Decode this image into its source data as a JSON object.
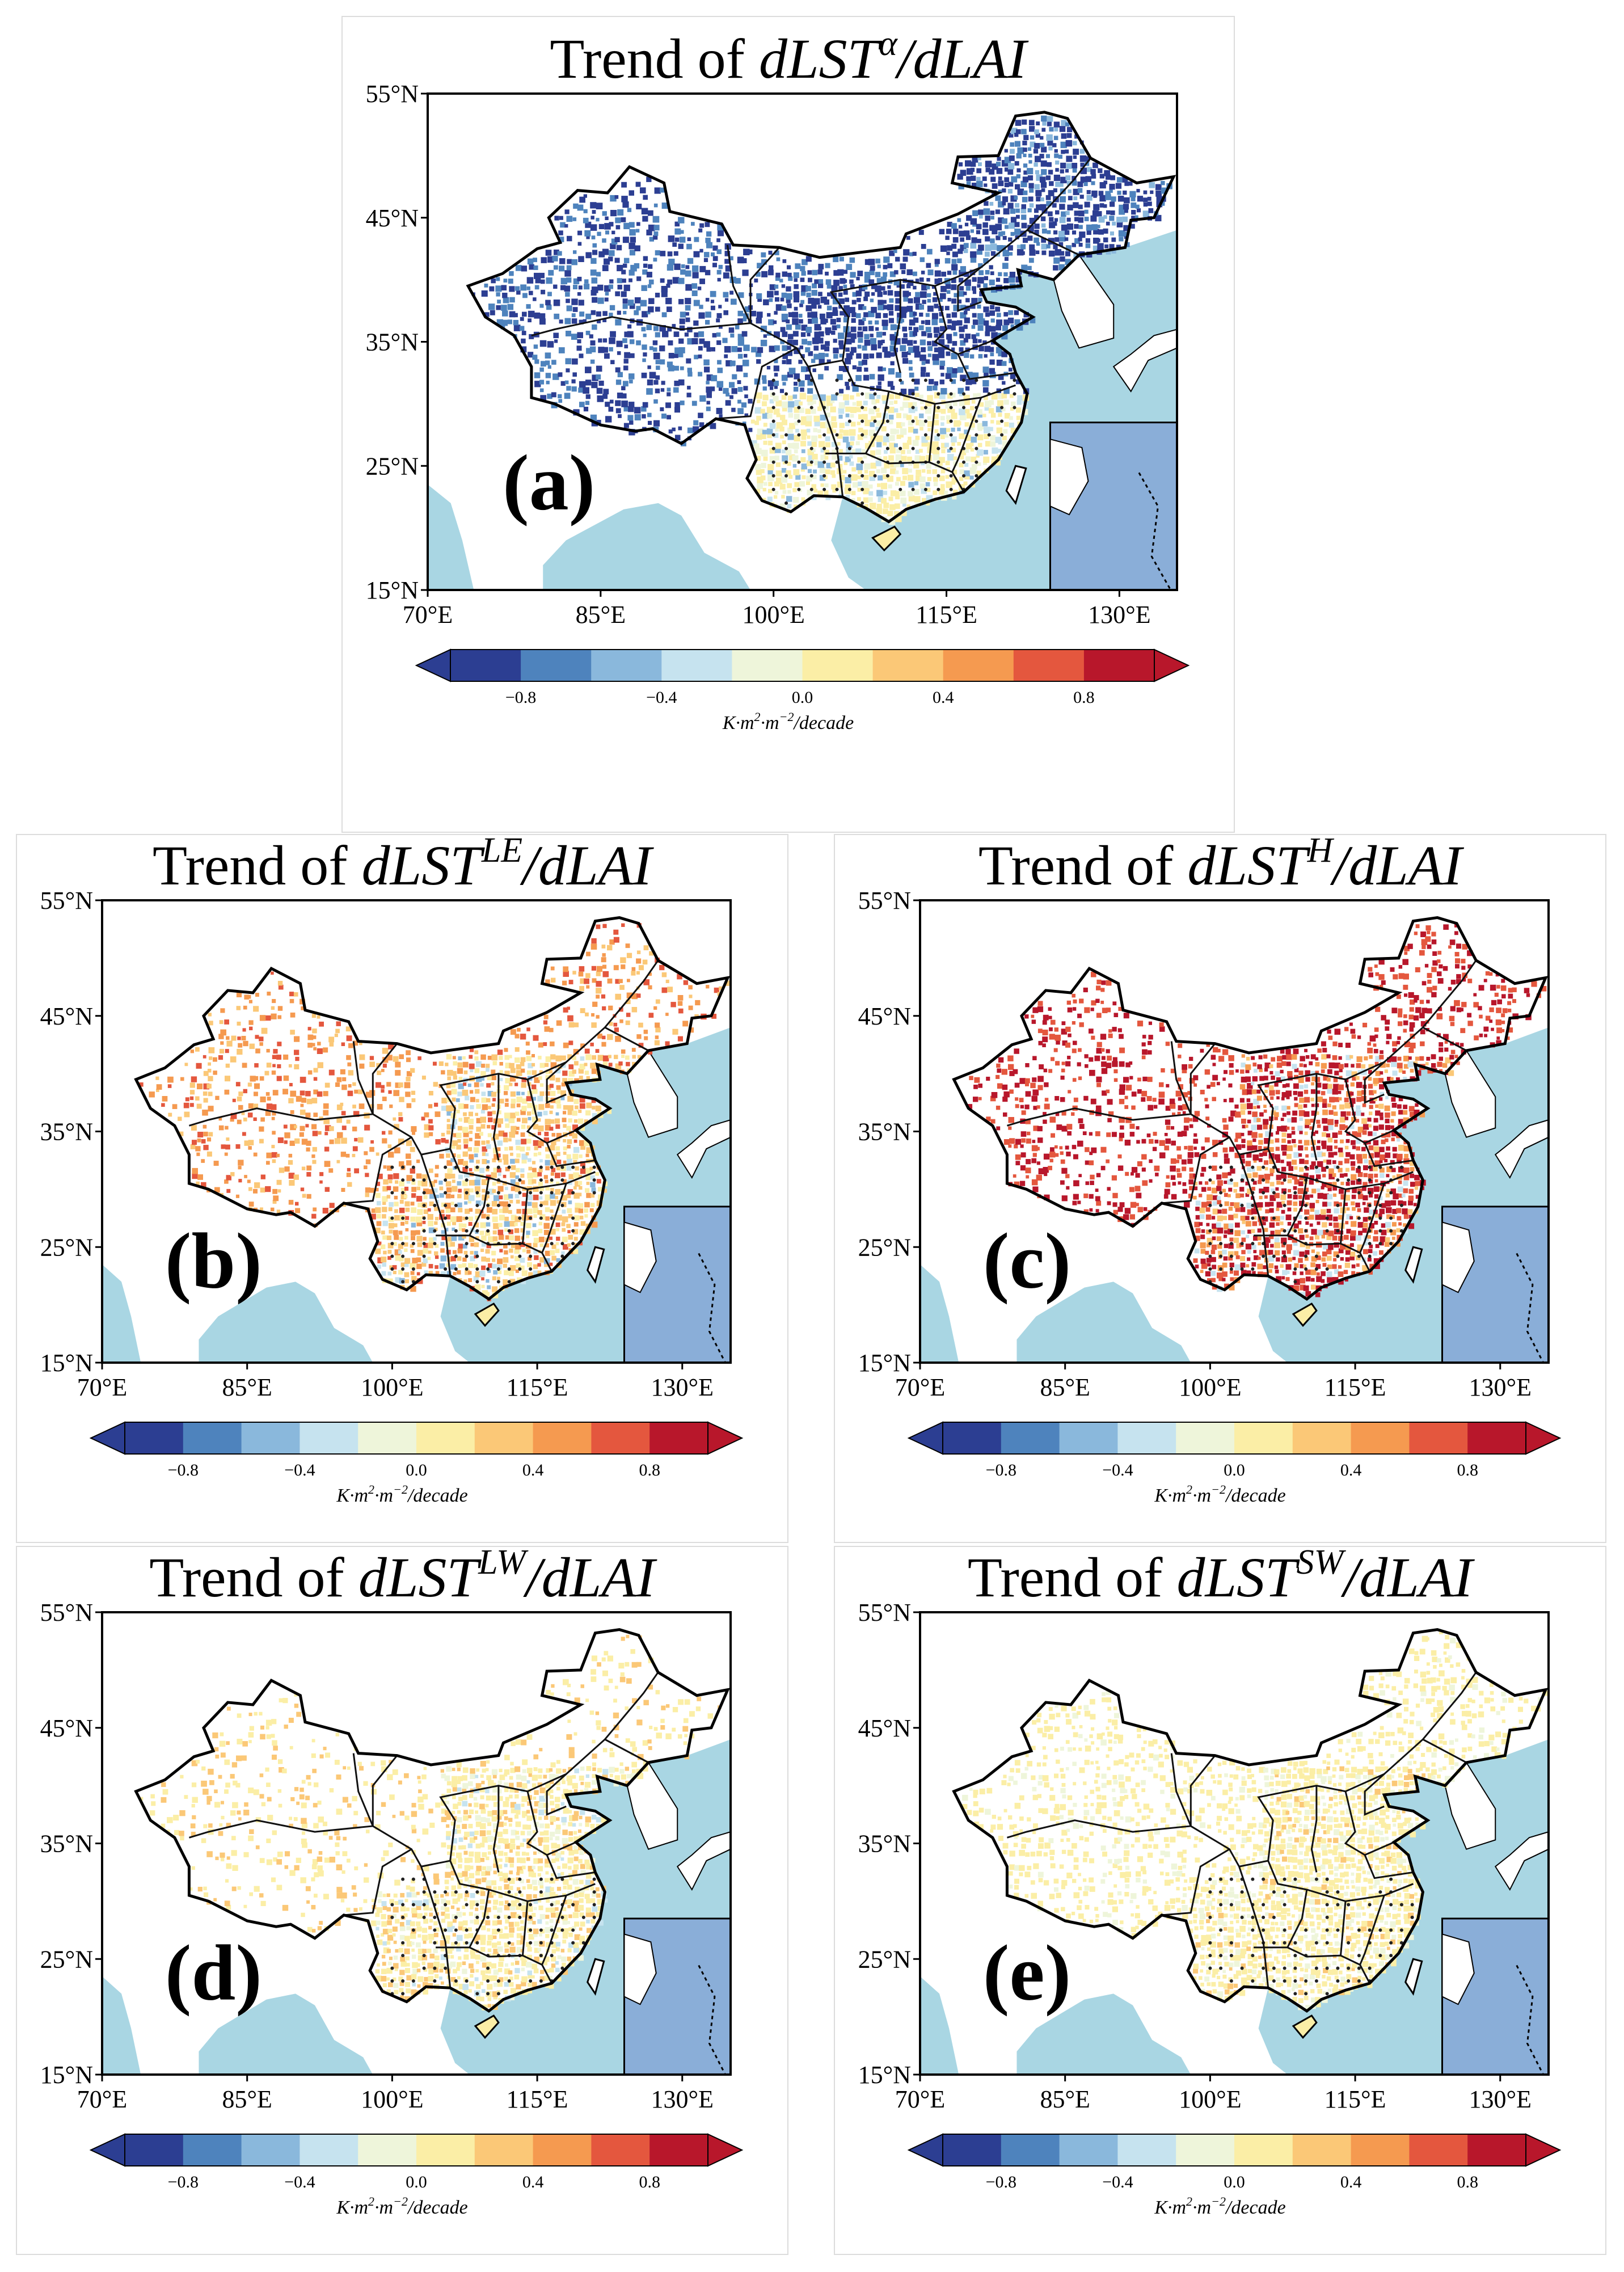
{
  "figure": {
    "title_prefix": "Trend of ",
    "panels": [
      {
        "id": "a",
        "label": "(a)",
        "sup": "α",
        "tone": "neg"
      },
      {
        "id": "b",
        "label": "(b)",
        "sup": "LE",
        "tone": "mixpos"
      },
      {
        "id": "c",
        "label": "(c)",
        "sup": "H",
        "tone": "strongpos"
      },
      {
        "id": "d",
        "label": "(d)",
        "sup": "LW",
        "tone": "weakpos"
      },
      {
        "id": "e",
        "label": "(e)",
        "sup": "SW",
        "tone": "faintpos"
      }
    ],
    "title_var": "dLST",
    "title_denom": "/dLAI",
    "lat_ticks": [
      "55°N",
      "45°N",
      "35°N",
      "25°N",
      "15°N"
    ],
    "lon_ticks": [
      "70°E",
      "85°E",
      "100°E",
      "115°E",
      "130°E"
    ],
    "colorbar": {
      "colors": [
        "#2c3e92",
        "#4e83bd",
        "#8ab8dc",
        "#c6e3ef",
        "#eef5da",
        "#fbeea6",
        "#fbc877",
        "#f59a50",
        "#e4573e",
        "#b8172b"
      ],
      "tick_labels": [
        "−0.8",
        "−0.4",
        "0.0",
        "0.4",
        "0.8"
      ],
      "tick_values": [
        -0.8,
        -0.4,
        0.0,
        0.4,
        0.8
      ],
      "range": [
        -1.0,
        1.0
      ],
      "unit_parts": [
        "K·m",
        "2",
        "·m",
        "−2",
        "/decade"
      ]
    },
    "colors": {
      "ocean": "#a9d6e3",
      "inset": "#8aaed8",
      "land": "#ffffff"
    }
  }
}
